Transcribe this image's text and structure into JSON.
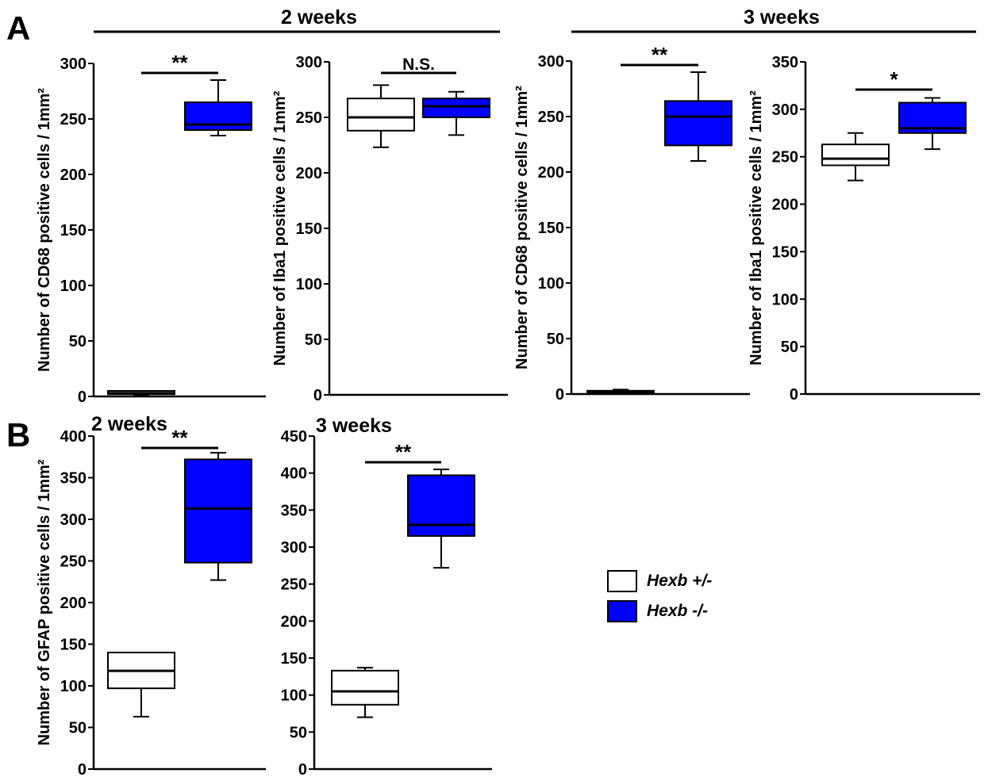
{
  "panels": {
    "A": "A",
    "B": "B"
  },
  "headers": {
    "two_weeks": "2 weeks",
    "three_weeks": "3 weeks"
  },
  "colors": {
    "wt": "#ffffff",
    "ko": "#0000ff",
    "stroke": "#000000"
  },
  "legend": [
    {
      "label": "Hexb +/-",
      "color": "#ffffff"
    },
    {
      "label": "Hexb -/-",
      "color": "#0000ff"
    }
  ],
  "chart_data": [
    {
      "type": "box",
      "id": "A1",
      "ylabel": "Number of CD68 positive cells / 1mm²",
      "ylim": [
        0,
        300
      ],
      "yticks": [
        0,
        50,
        100,
        150,
        200,
        250,
        300
      ],
      "categories": [
        "Hexb +/-",
        "Hexb -/-"
      ],
      "boxes": [
        {
          "min": 1,
          "q1": 2,
          "median": 3,
          "q3": 5,
          "max": 5
        },
        {
          "min": 235,
          "q1": 240,
          "median": 245,
          "q3": 265,
          "max": 285
        }
      ],
      "significance": "**"
    },
    {
      "type": "box",
      "id": "A2",
      "ylabel": "Number of Iba1 positive cells / 1mm²",
      "ylim": [
        0,
        300
      ],
      "yticks": [
        0,
        50,
        100,
        150,
        200,
        250,
        300
      ],
      "categories": [
        "Hexb +/-",
        "Hexb -/-"
      ],
      "boxes": [
        {
          "min": 223,
          "q1": 238,
          "median": 250,
          "q3": 267,
          "max": 279
        },
        {
          "min": 234,
          "q1": 250,
          "median": 260,
          "q3": 267,
          "max": 273
        }
      ],
      "significance": "N.S."
    },
    {
      "type": "box",
      "id": "A3",
      "ylabel": "Number of CD68 positive cells / 1mm²",
      "ylim": [
        0,
        300
      ],
      "yticks": [
        0,
        50,
        100,
        150,
        200,
        250,
        300
      ],
      "categories": [
        "Hexb +/-",
        "Hexb -/-"
      ],
      "boxes": [
        {
          "min": 0,
          "q1": 1,
          "median": 2,
          "q3": 3,
          "max": 4
        },
        {
          "min": 210,
          "q1": 224,
          "median": 250,
          "q3": 264,
          "max": 290
        }
      ],
      "significance": "**"
    },
    {
      "type": "box",
      "id": "A4",
      "ylabel": "Number of Iba1 positive cells / 1mm²",
      "ylim": [
        0,
        350
      ],
      "yticks": [
        0,
        50,
        100,
        150,
        200,
        250,
        300,
        350
      ],
      "categories": [
        "Hexb +/-",
        "Hexb -/-"
      ],
      "boxes": [
        {
          "min": 225,
          "q1": 241,
          "median": 248,
          "q3": 263,
          "max": 275
        },
        {
          "min": 258,
          "q1": 275,
          "median": 280,
          "q3": 307,
          "max": 312
        }
      ],
      "significance": "*"
    },
    {
      "type": "box",
      "id": "B1",
      "title": "2 weeks",
      "ylabel": "Number of GFAP positive cells / 1mm²",
      "ylim": [
        0,
        400
      ],
      "yticks": [
        0,
        50,
        100,
        150,
        200,
        250,
        300,
        350,
        400
      ],
      "categories": [
        "Hexb +/-",
        "Hexb -/-"
      ],
      "boxes": [
        {
          "min": 63,
          "q1": 97,
          "median": 118,
          "q3": 140,
          "max": 140
        },
        {
          "min": 227,
          "q1": 248,
          "median": 313,
          "q3": 372,
          "max": 380
        }
      ],
      "significance": "**"
    },
    {
      "type": "box",
      "id": "B2",
      "title": "3 weeks",
      "ylabel": "",
      "ylim": [
        0,
        450
      ],
      "yticks": [
        0,
        50,
        100,
        150,
        200,
        250,
        300,
        350,
        400,
        450
      ],
      "categories": [
        "Hexb +/-",
        "Hexb -/-"
      ],
      "boxes": [
        {
          "min": 70,
          "q1": 87,
          "median": 105,
          "q3": 133,
          "max": 137
        },
        {
          "min": 272,
          "q1": 315,
          "median": 330,
          "q3": 397,
          "max": 405
        }
      ],
      "significance": "**"
    }
  ]
}
